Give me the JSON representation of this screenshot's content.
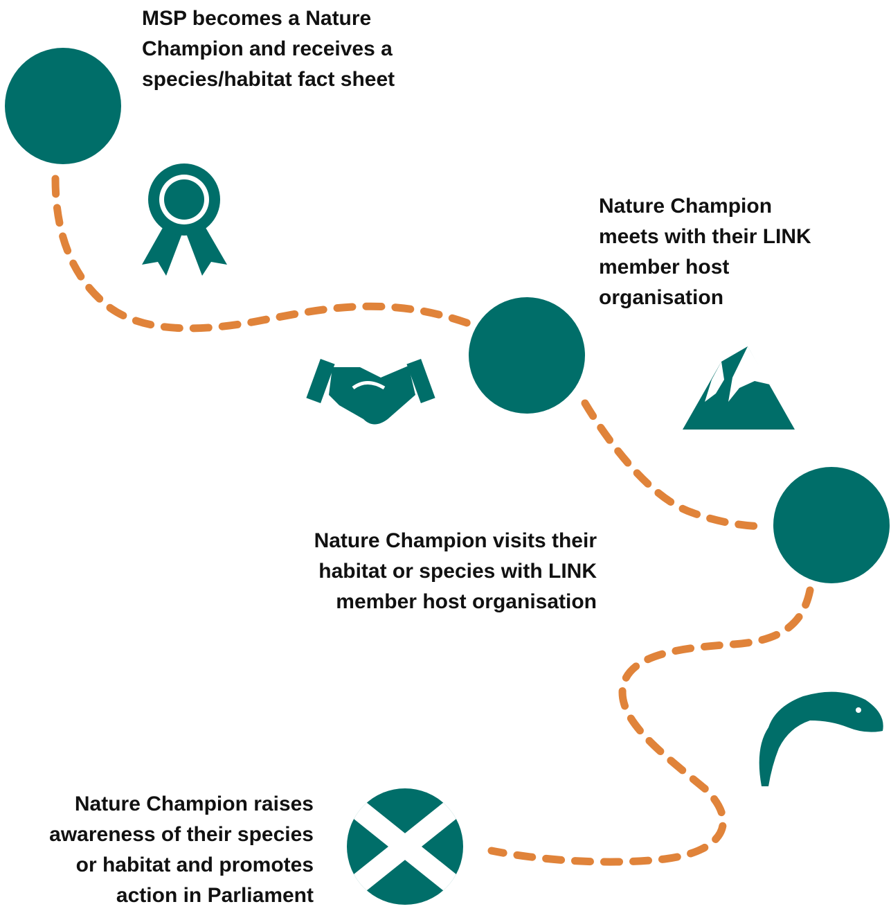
{
  "steps": [
    {
      "lines": [
        "MSP becomes a Nature",
        "Champion and receives a",
        "species/habitat fact sheet"
      ]
    },
    {
      "lines": [
        "Nature Champion",
        "meets with their LINK",
        "member host",
        "organisation"
      ]
    },
    {
      "lines": [
        "Nature Champion visits their",
        "habitat or species with LINK",
        "member host organisation"
      ]
    },
    {
      "lines": [
        "Nature Champion raises",
        "awareness of their species",
        "or habitat and promotes",
        "action in Parliament"
      ]
    }
  ]
}
